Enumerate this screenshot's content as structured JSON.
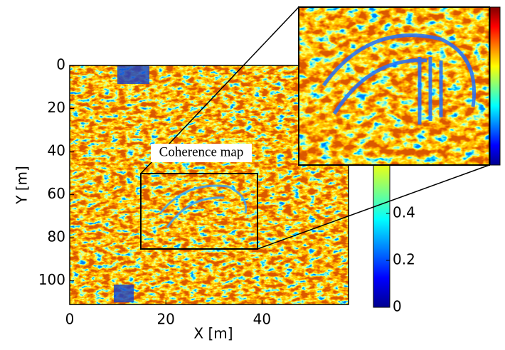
{
  "chart_data": {
    "type": "heatmap",
    "annotation": "Coherence map",
    "xlabel": "X [m]",
    "ylabel": "Y [m]",
    "xlim": [
      0,
      58
    ],
    "xticks": [
      0,
      20,
      40
    ],
    "ylim": [
      0,
      111
    ],
    "yticks": [
      0,
      20,
      40,
      60,
      80,
      100
    ],
    "colorbar": {
      "lim": [
        0,
        1
      ],
      "ticks": [
        0,
        0.2,
        0.4
      ],
      "colormap": "jet"
    }
  }
}
